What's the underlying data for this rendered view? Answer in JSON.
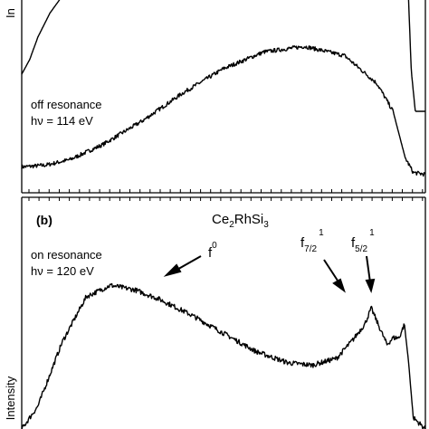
{
  "chart_data": [
    {
      "type": "line",
      "panel": "a",
      "ylabel": "In",
      "annotation": {
        "line1": "off resonance",
        "line2": "hν = 114 eV"
      },
      "series": [
        {
          "x": [
            0,
            6,
            12,
            20,
            30,
            40,
            50,
            60,
            70,
            80,
            88,
            92,
            95,
            97,
            100
          ],
          "y": [
            0.1,
            0.11,
            0.14,
            0.22,
            0.35,
            0.5,
            0.63,
            0.72,
            0.75,
            0.7,
            0.55,
            0.4,
            0.15,
            0.07,
            0.06
          ]
        },
        {
          "x": [
            0,
            2,
            4,
            7,
            10
          ],
          "y": [
            0.6,
            0.68,
            0.8,
            0.93,
            1.02
          ]
        },
        {
          "x": [
            95.8,
            96.5,
            97.5,
            100
          ],
          "y": [
            1.02,
            0.62,
            0.4,
            0.4
          ]
        }
      ]
    },
    {
      "type": "line",
      "panel": "b",
      "panel_label": "(b)",
      "ylabel": "Intensity",
      "compound": {
        "base": "Ce",
        "sub1": "2",
        "mid": "RhSi",
        "sub2": "3"
      },
      "annotation": {
        "line1": "on resonance",
        "line2": "hν = 120 eV"
      },
      "peak_labels": [
        {
          "base": "f",
          "sup": "0"
        },
        {
          "base": "f",
          "sub": "7/2",
          "sup": "1"
        },
        {
          "base": "f",
          "sub": "5/2",
          "sup": "1"
        }
      ],
      "series": [
        {
          "x": [
            0,
            4,
            10,
            16,
            22,
            28,
            34,
            42,
            50,
            58,
            66,
            72,
            78,
            82,
            85,
            86.6,
            88.5,
            90.5,
            92,
            93.5,
            94.8,
            95.8,
            97,
            100
          ],
          "y": [
            0.0,
            0.1,
            0.38,
            0.58,
            0.63,
            0.61,
            0.57,
            0.5,
            0.42,
            0.34,
            0.29,
            0.28,
            0.31,
            0.39,
            0.46,
            0.53,
            0.45,
            0.37,
            0.4,
            0.4,
            0.46,
            0.3,
            0.05,
            0.0
          ]
        }
      ]
    }
  ]
}
